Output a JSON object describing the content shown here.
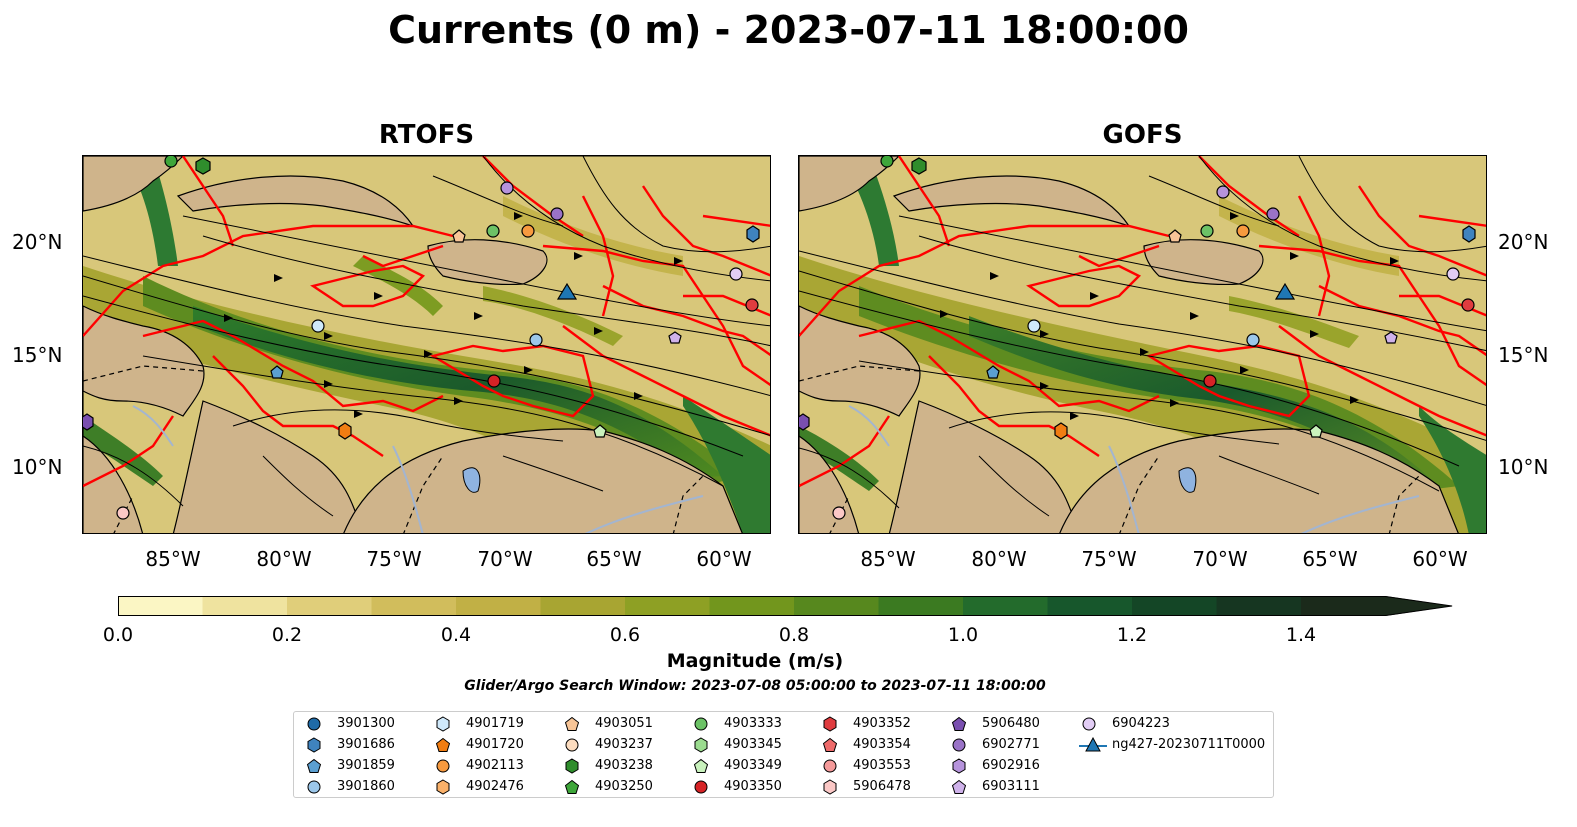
{
  "title": "Currents (0 m) - 2023-07-11 18:00:00",
  "panels": [
    {
      "title": "RTOFS"
    },
    {
      "title": "GOFS"
    }
  ],
  "x_ticks": [
    "85°W",
    "80°W",
    "75°W",
    "70°W",
    "65°W",
    "60°W"
  ],
  "y_ticks": [
    "20°N",
    "15°N",
    "10°N"
  ],
  "colorbar": {
    "label": "Magnitude (m/s)",
    "ticks": [
      "0.0",
      "0.2",
      "0.4",
      "0.6",
      "0.8",
      "1.0",
      "1.2",
      "1.4"
    ],
    "colors": [
      "#fbf6c4",
      "#efe39f",
      "#e0ce7a",
      "#d1bd5c",
      "#c1b045",
      "#a8a532",
      "#8ea024",
      "#72961d",
      "#57881e",
      "#3b7a21",
      "#236b2c",
      "#17572c",
      "#144626",
      "#163621",
      "#1b2a1b"
    ]
  },
  "search_window": "Glider/Argo Search Window: 2023-07-08 05:00:00 to 2023-07-11 18:00:00",
  "legend": [
    {
      "label": "3901300",
      "marker": "circle",
      "color": "#1f6ba8"
    },
    {
      "label": "3901686",
      "marker": "hexagon",
      "color": "#3f83bf"
    },
    {
      "label": "3901859",
      "marker": "pentagon",
      "color": "#5b9fd1"
    },
    {
      "label": "3901860",
      "marker": "circle",
      "color": "#9cc7ea"
    },
    {
      "label": "4901719",
      "marker": "hexagon",
      "color": "#cfe9fb"
    },
    {
      "label": "4901720",
      "marker": "pentagon",
      "color": "#f17d12"
    },
    {
      "label": "4902113",
      "marker": "circle",
      "color": "#f79a3f"
    },
    {
      "label": "4902476",
      "marker": "hexagon",
      "color": "#fab16a"
    },
    {
      "label": "4903051",
      "marker": "pentagon",
      "color": "#f8c597"
    },
    {
      "label": "4903237",
      "marker": "circle",
      "color": "#fcdcbf"
    },
    {
      "label": "4903238",
      "marker": "hexagon",
      "color": "#2f8d2c"
    },
    {
      "label": "4903250",
      "marker": "pentagon",
      "color": "#3ea63a"
    },
    {
      "label": "4903333",
      "marker": "circle",
      "color": "#6cc266"
    },
    {
      "label": "4903345",
      "marker": "hexagon",
      "color": "#9bdc8f"
    },
    {
      "label": "4903349",
      "marker": "pentagon",
      "color": "#c9f2bd"
    },
    {
      "label": "4903350",
      "marker": "circle",
      "color": "#d62326"
    },
    {
      "label": "4903352",
      "marker": "hexagon",
      "color": "#e03c3f"
    },
    {
      "label": "4903354",
      "marker": "pentagon",
      "color": "#ee6a6a"
    },
    {
      "label": "4903553",
      "marker": "circle",
      "color": "#f59a9a"
    },
    {
      "label": "5906478",
      "marker": "hexagon",
      "color": "#fbc8c6"
    },
    {
      "label": "5906480",
      "marker": "pentagon",
      "color": "#7a4fb0"
    },
    {
      "label": "6902771",
      "marker": "circle",
      "color": "#9a73c7"
    },
    {
      "label": "6902916",
      "marker": "hexagon",
      "color": "#b693dc"
    },
    {
      "label": "6903111",
      "marker": "pentagon",
      "color": "#cfb2ea"
    },
    {
      "label": "6904223",
      "marker": "circle",
      "color": "#e2cdf5"
    },
    {
      "label": "ng427-20230711T0000",
      "marker": "triangle",
      "color": "#1f77b4"
    }
  ]
}
